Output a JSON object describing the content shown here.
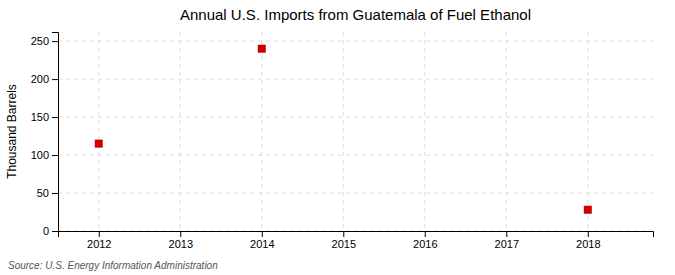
{
  "chart_data": {
    "type": "scatter",
    "title": "Annual U.S. Imports from Guatemala of Fuel Ethanol",
    "ylabel": "Thousand Barrels",
    "annotations": [
      "Source: U.S. Energy Information Administration"
    ],
    "x": [
      2012,
      2014,
      2018
    ],
    "values": [
      115,
      240,
      28
    ],
    "xlim": [
      2011.5,
      2018.8
    ],
    "ylim": [
      0,
      262
    ],
    "xticks": [
      2012,
      2013,
      2014,
      2015,
      2016,
      2017,
      2018
    ],
    "yticks": [
      0,
      50,
      100,
      150,
      200,
      250
    ],
    "color": "#cc0000",
    "marker": "square",
    "grid": true
  }
}
